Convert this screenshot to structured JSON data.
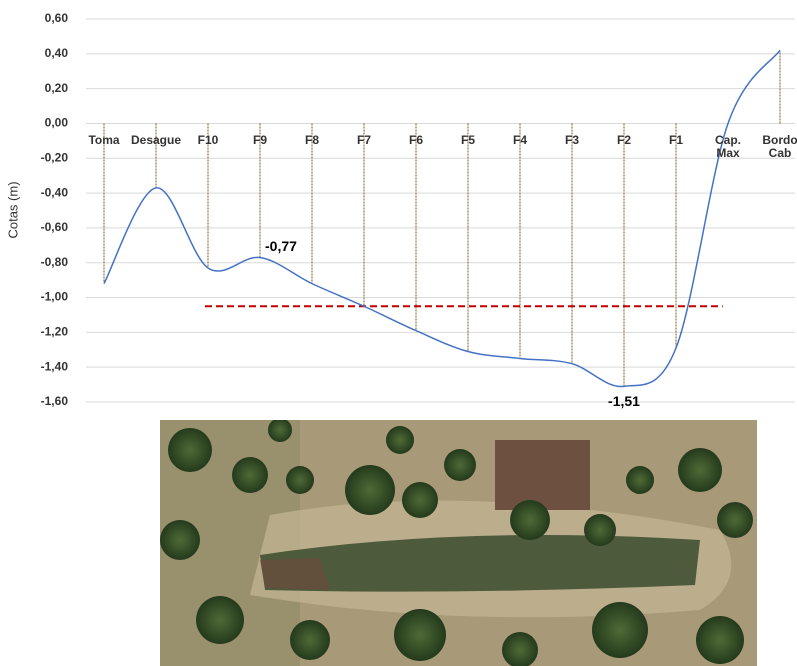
{
  "chart_data": {
    "type": "line",
    "y_label": "Cotas (m)",
    "categories": [
      "Toma",
      "Desague",
      "F10",
      "F9",
      "F8",
      "F7",
      "F6",
      "F5",
      "F4",
      "F3",
      "F2",
      "F1",
      "Cap. Max",
      "Bordo Cab"
    ],
    "values": [
      -0.92,
      -0.37,
      -0.83,
      -0.77,
      -0.92,
      -1.05,
      -1.19,
      -1.31,
      -1.35,
      -1.38,
      -1.51,
      -1.29,
      0.0,
      0.42
    ],
    "value_labels": [
      null,
      null,
      null,
      "-0,77",
      null,
      null,
      null,
      null,
      null,
      null,
      "-1,51",
      null,
      null,
      null
    ],
    "color": "#4472c4",
    "ylim": [
      -1.6,
      0.6
    ],
    "yticks": [
      {
        "value": 0.6,
        "label": "0,60"
      },
      {
        "value": 0.4,
        "label": "0,40"
      },
      {
        "value": 0.2,
        "label": "0,20"
      },
      {
        "value": 0,
        "label": "0,00"
      },
      {
        "value": -0.2,
        "label": "-0,20"
      },
      {
        "value": -0.4,
        "label": "-0,40"
      },
      {
        "value": -0.6,
        "label": "-0,60"
      },
      {
        "value": -0.8,
        "label": "-0,80"
      },
      {
        "value": -1.0,
        "label": "-1,00"
      },
      {
        "value": -1.2,
        "label": "-1,20"
      },
      {
        "value": -1.4,
        "label": "-1,40"
      },
      {
        "value": -1.6,
        "label": "-1,60"
      }
    ],
    "grid": true,
    "drop_lines": true,
    "reference_line": {
      "value": -1.05,
      "color": "#c00000"
    }
  }
}
